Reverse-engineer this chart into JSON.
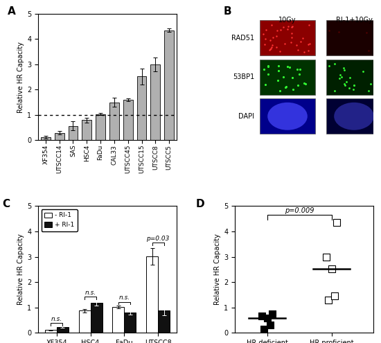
{
  "panel_A": {
    "categories": [
      "XF354",
      "UTSCC14",
      "SAS",
      "HSC4",
      "FaDu",
      "CAL33",
      "UTSCC45",
      "UTSCC15",
      "UTSCC8",
      "UTSCC5"
    ],
    "values": [
      0.13,
      0.3,
      0.57,
      0.8,
      1.03,
      1.5,
      1.6,
      2.52,
      3.0,
      4.35
    ],
    "errors": [
      0.05,
      0.07,
      0.18,
      0.1,
      0.04,
      0.18,
      0.05,
      0.32,
      0.28,
      0.08
    ],
    "bar_color": "#b0b0b0",
    "ylabel": "Relative HR Capacity",
    "ylim": [
      0,
      5
    ],
    "yticks": [
      0,
      1,
      2,
      3,
      4,
      5
    ],
    "dotted_line": 1.0,
    "label": "A"
  },
  "panel_B": {
    "label": "B",
    "col_labels": [
      "10Gy",
      "RI-1+10Gy"
    ],
    "row_labels": [
      "RAD51",
      "53BP1",
      "DAPI"
    ],
    "bg_colors": [
      [
        "#8b0000",
        "#1a0000"
      ],
      [
        "#003300",
        "#002000"
      ],
      [
        "#00008b",
        "#000033"
      ]
    ]
  },
  "panel_C": {
    "categories": [
      "XF354",
      "HSC4",
      "FaDu",
      "UTSCC8"
    ],
    "values_open": [
      0.1,
      0.87,
      1.02,
      3.02
    ],
    "values_filled": [
      0.22,
      1.18,
      0.8,
      0.87
    ],
    "errors_open": [
      0.02,
      0.07,
      0.05,
      0.32
    ],
    "errors_filled": [
      0.03,
      0.1,
      0.08,
      0.18
    ],
    "bar_color_open": "#ffffff",
    "bar_color_filled": "#111111",
    "ylabel": "Relative HR Capacity",
    "ylim": [
      0,
      5
    ],
    "yticks": [
      0,
      1,
      2,
      3,
      4,
      5
    ],
    "legend_labels": [
      "- RI-1",
      "+ RI-1"
    ],
    "sig_labels": [
      "n.s.",
      "n.s.",
      "n.s.",
      "p=0.03"
    ],
    "label": "C"
  },
  "panel_D": {
    "hr_deficient": [
      0.13,
      0.3,
      0.57,
      0.67,
      0.75
    ],
    "hr_proficient": [
      1.3,
      1.45,
      2.52,
      3.0,
      4.35
    ],
    "hr_deficient_median": 0.57,
    "hr_proficient_median": 2.52,
    "ylabel": "Relative HR Capacity",
    "ylim": [
      0,
      5
    ],
    "yticks": [
      0,
      1,
      2,
      3,
      4,
      5
    ],
    "xlabel_left": "HR deficient",
    "xlabel_right": "HR proficient",
    "p_value": "p=0.009",
    "label": "D"
  },
  "figure": {
    "bg_color": "#ffffff",
    "font_size": 8,
    "tick_font_size": 7
  }
}
